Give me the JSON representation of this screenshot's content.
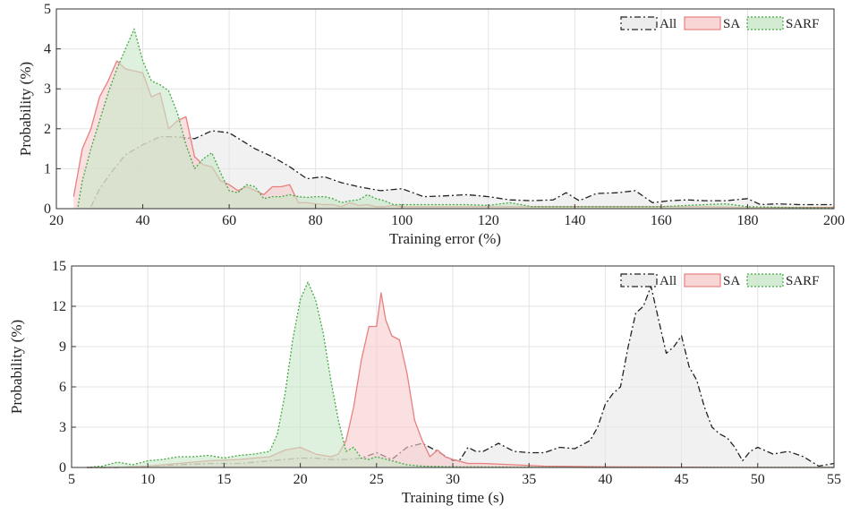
{
  "chart_data": [
    {
      "type": "area",
      "xlabel": "Training error (%)",
      "ylabel": "Probability (%)",
      "xlim": [
        20,
        200
      ],
      "ylim": [
        0,
        5
      ],
      "xticks": [
        20,
        40,
        60,
        80,
        100,
        120,
        140,
        160,
        180,
        200
      ],
      "yticks": [
        0,
        1,
        2,
        3,
        4,
        5
      ],
      "grid": true,
      "legend_position": "top-right",
      "series": [
        {
          "name": "All",
          "color": "#222222",
          "fill": "#e8e8e8",
          "line_style": "dash-dot",
          "x": [
            28,
            30,
            33,
            36,
            40,
            44,
            48,
            52,
            56,
            60,
            63,
            66,
            70,
            74,
            78,
            82,
            86,
            90,
            95,
            100,
            105,
            110,
            115,
            120,
            125,
            130,
            135,
            138,
            141,
            145,
            150,
            154,
            158,
            162,
            166,
            170,
            175,
            180,
            183,
            187,
            192,
            196,
            200
          ],
          "y": [
            0.05,
            0.5,
            0.95,
            1.35,
            1.6,
            1.8,
            1.8,
            1.75,
            1.95,
            1.9,
            1.7,
            1.5,
            1.3,
            1.05,
            0.75,
            0.8,
            0.65,
            0.55,
            0.45,
            0.5,
            0.3,
            0.32,
            0.35,
            0.3,
            0.22,
            0.2,
            0.22,
            0.4,
            0.2,
            0.38,
            0.4,
            0.45,
            0.15,
            0.2,
            0.22,
            0.2,
            0.2,
            0.25,
            0.1,
            0.12,
            0.1,
            0.1,
            0.1
          ]
        },
        {
          "name": "SA",
          "color": "#e88080",
          "fill": "#f6cccc",
          "line_style": "solid",
          "x": [
            24,
            25,
            26,
            28,
            30,
            32,
            34,
            36,
            38,
            40,
            42,
            44,
            46,
            48,
            50,
            52,
            54,
            56,
            58,
            60,
            62,
            64,
            66,
            68,
            70,
            72,
            74,
            76,
            78,
            80,
            82,
            84,
            86,
            88,
            90,
            92,
            94,
            96,
            98,
            100,
            105,
            110,
            115,
            120,
            125,
            130,
            140,
            150,
            160,
            170,
            180,
            190,
            200
          ],
          "y": [
            0.3,
            0.9,
            1.5,
            2.0,
            2.8,
            3.2,
            3.7,
            3.5,
            3.45,
            3.4,
            2.8,
            2.9,
            2.0,
            2.2,
            2.3,
            1.3,
            1.1,
            1.05,
            0.7,
            0.6,
            0.45,
            0.55,
            0.45,
            0.35,
            0.55,
            0.55,
            0.6,
            0.15,
            0.15,
            0.12,
            0.1,
            0.1,
            0.05,
            0.15,
            0.08,
            0.1,
            0.05,
            0.05,
            0.08,
            0.05,
            0.05,
            0.05,
            0.05,
            0.05,
            0.05,
            0.05,
            0.05,
            0.05,
            0.05,
            0.05,
            0.03,
            0.03,
            0.03
          ]
        },
        {
          "name": "SARF",
          "color": "#44aa44",
          "fill": "#c8e6c8",
          "line_style": "dotted",
          "x": [
            25,
            26,
            28,
            30,
            32,
            34,
            36,
            37,
            38,
            40,
            42,
            44,
            46,
            48,
            50,
            52,
            54,
            56,
            58,
            60,
            62,
            64,
            66,
            68,
            70,
            72,
            74,
            76,
            78,
            80,
            82,
            84,
            86,
            88,
            90,
            92,
            94,
            96,
            98,
            100,
            105,
            110,
            115,
            120,
            125,
            130,
            140,
            150,
            160,
            170,
            175,
            180,
            190,
            200
          ],
          "y": [
            0.05,
            0.7,
            1.5,
            2.2,
            2.9,
            3.5,
            4.0,
            4.25,
            4.5,
            3.7,
            3.2,
            3.1,
            2.95,
            2.4,
            1.6,
            1.0,
            1.25,
            1.4,
            0.9,
            0.45,
            0.4,
            0.6,
            0.55,
            0.25,
            0.3,
            0.3,
            0.35,
            0.3,
            0.28,
            0.3,
            0.3,
            0.25,
            0.15,
            0.2,
            0.22,
            0.35,
            0.25,
            0.2,
            0.1,
            0.1,
            0.1,
            0.1,
            0.1,
            0.08,
            0.15,
            0.05,
            0.05,
            0.05,
            0.05,
            0.1,
            0.12,
            0.05,
            0.03,
            0.02
          ]
        }
      ]
    },
    {
      "type": "area",
      "xlabel": "Training time (s)",
      "ylabel": "Probability (%)",
      "xlim": [
        5,
        55
      ],
      "ylim": [
        0,
        15
      ],
      "xticks": [
        5,
        10,
        15,
        20,
        25,
        30,
        35,
        40,
        45,
        50,
        55
      ],
      "yticks": [
        0,
        3,
        6,
        9,
        12,
        15
      ],
      "grid": true,
      "legend_position": "top-right",
      "series": [
        {
          "name": "All",
          "color": "#222222",
          "fill": "#e8e8e8",
          "line_style": "dash-dot",
          "x": [
            6,
            8,
            10,
            12,
            14,
            16,
            18,
            19,
            20,
            21,
            22,
            23,
            24,
            25,
            26,
            27,
            28,
            29,
            30,
            30.5,
            31,
            31.5,
            32,
            33,
            34,
            35,
            36,
            37,
            38,
            39,
            39.5,
            40,
            40.5,
            41,
            41.5,
            42,
            42.5,
            43,
            43.5,
            44,
            44.5,
            45,
            45.5,
            46,
            46.5,
            47,
            47.5,
            48,
            48.5,
            49,
            49.5,
            50,
            51,
            52,
            53,
            54,
            55
          ],
          "y": [
            0.0,
            0.0,
            0.1,
            0.2,
            0.3,
            0.3,
            0.5,
            0.6,
            0.7,
            0.7,
            0.6,
            0.6,
            0.7,
            1.1,
            0.6,
            1.5,
            1.8,
            1.2,
            0.5,
            0.6,
            1.5,
            1.2,
            1.2,
            1.8,
            1.2,
            1.1,
            1.1,
            1.5,
            1.4,
            2.0,
            3.0,
            4.7,
            5.5,
            6.0,
            9.0,
            11.5,
            12.0,
            13.5,
            11.0,
            8.5,
            9.0,
            9.8,
            7.5,
            6.5,
            4.5,
            3.0,
            2.5,
            2.2,
            1.5,
            0.5,
            1.2,
            1.5,
            1.0,
            1.2,
            0.8,
            0.1,
            0.3
          ]
        },
        {
          "name": "SA",
          "color": "#e88080",
          "fill": "#f6cccc",
          "line_style": "solid",
          "x": [
            6,
            8,
            10,
            12,
            14,
            16,
            18,
            19,
            20,
            21,
            22,
            22.5,
            23,
            23.5,
            24,
            24.5,
            25,
            25.3,
            25.6,
            26,
            26.5,
            27,
            27.5,
            28,
            28.5,
            29,
            29.5,
            30,
            31,
            32,
            34,
            36,
            40,
            45,
            50,
            55
          ],
          "y": [
            0.0,
            0.0,
            0.1,
            0.3,
            0.5,
            0.6,
            0.8,
            1.3,
            1.5,
            1.0,
            0.8,
            1.0,
            2.0,
            4.5,
            8.0,
            10.5,
            10.5,
            13.0,
            11.0,
            9.8,
            9.5,
            7.0,
            3.5,
            2.0,
            0.8,
            1.3,
            0.8,
            0.6,
            0.3,
            0.3,
            0.2,
            0.1,
            0.05,
            0.02,
            0.0,
            0.0
          ]
        },
        {
          "name": "SARF",
          "color": "#44aa44",
          "fill": "#c8e6c8",
          "line_style": "dotted",
          "x": [
            6,
            7,
            8,
            9,
            10,
            11,
            12,
            13,
            14,
            15,
            16,
            17,
            18,
            18.5,
            19,
            19.5,
            20,
            20.5,
            21,
            21.5,
            22,
            22.5,
            23,
            23.5,
            24,
            24.5,
            25,
            26,
            27,
            28,
            30,
            35,
            40,
            45,
            50,
            55
          ],
          "y": [
            0.0,
            0.1,
            0.4,
            0.2,
            0.5,
            0.6,
            0.8,
            0.8,
            0.9,
            0.7,
            0.9,
            1.0,
            1.2,
            2.5,
            5.5,
            9.5,
            12.5,
            13.8,
            12.5,
            10.0,
            6.5,
            3.5,
            1.2,
            1.5,
            0.7,
            0.6,
            0.8,
            0.5,
            0.2,
            0.1,
            0.05,
            0.02,
            0.0,
            0.0,
            0.0,
            0.0
          ]
        }
      ]
    }
  ]
}
